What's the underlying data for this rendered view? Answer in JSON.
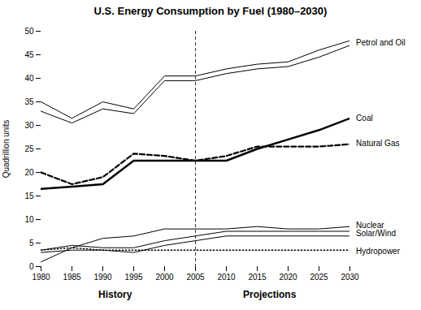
{
  "chart_data": {
    "type": "line",
    "title": "U.S. Energy Consumption by Fuel (1980–2030)",
    "ylabel": "Quadrillion units",
    "x": [
      1980,
      1985,
      1990,
      1995,
      2000,
      2005,
      2010,
      2015,
      2020,
      2025,
      2030
    ],
    "series": [
      {
        "color": "#000000",
        "line_style": "thin",
        "values": [
          35,
          31.5,
          35,
          33.5,
          40.5,
          40.5,
          42,
          43,
          43.5,
          46,
          48
        ]
      },
      {
        "color": "#000000",
        "line_style": "thin",
        "values": [
          33,
          30.5,
          33.5,
          32.5,
          39.5,
          39.5,
          41,
          42,
          42.5,
          44.5,
          47
        ]
      },
      {
        "color": "#000000",
        "line_style": "bold",
        "values": [
          16.5,
          17,
          17.5,
          22.5,
          22.5,
          22.5,
          22.5,
          25,
          27,
          29,
          31.5
        ]
      },
      {
        "color": "#000000",
        "line_style": "dashed",
        "values": [
          20,
          17.5,
          19,
          24,
          23.5,
          22.5,
          23.5,
          25.5,
          25.5,
          25.5,
          26
        ]
      },
      {
        "color": "#000000",
        "line_style": "thin",
        "values": [
          1,
          4,
          6,
          6.5,
          8,
          8,
          8,
          8.5,
          8,
          8,
          8.5
        ]
      },
      {
        "color": "#000000",
        "line_style": "thin",
        "values": [
          3.5,
          4.5,
          4.0,
          4.0,
          5.5,
          6.5,
          7.5,
          7.5,
          7.5,
          7.5,
          7.5
        ]
      },
      {
        "color": "#000000",
        "line_style": "thin",
        "values": [
          3.0,
          3.5,
          3.5,
          3.0,
          4.5,
          5.5,
          6.5,
          6.5,
          6.5,
          6.5,
          6.5
        ]
      },
      {
        "color": "#000000",
        "line_style": "dotted",
        "values": [
          3.5,
          4.0,
          3.5,
          3.5,
          3.5,
          3.5,
          3.5,
          3.5,
          3.5,
          3.5,
          3.5
        ]
      }
    ],
    "vline": 2005,
    "annotations": [
      {
        "text": "Petrol and Oil",
        "x": 2031,
        "y": 47.5
      },
      {
        "text": "Coal",
        "x": 2031,
        "y": 31.5
      },
      {
        "text": "Natural Gas",
        "x": 2031,
        "y": 26.2
      },
      {
        "text": "Nuclear",
        "x": 2031,
        "y": 8.8
      },
      {
        "text": "Solar/Wind",
        "x": 2031,
        "y": 7.0
      },
      {
        "text": "Hydropower",
        "x": 2031,
        "y": 3.2
      }
    ],
    "period_labels": [
      {
        "text": "History",
        "x": 1992
      },
      {
        "text": "Projections",
        "x": 2017
      }
    ],
    "xlim": [
      1980,
      2030
    ],
    "xticks": [
      1980,
      1985,
      1990,
      1995,
      2000,
      2005,
      2010,
      2015,
      2020,
      2025,
      2030
    ],
    "ylim": [
      0,
      50
    ],
    "yticks": [
      0,
      5,
      10,
      15,
      20,
      25,
      30,
      35,
      40,
      45,
      50
    ],
    "grid": false
  }
}
